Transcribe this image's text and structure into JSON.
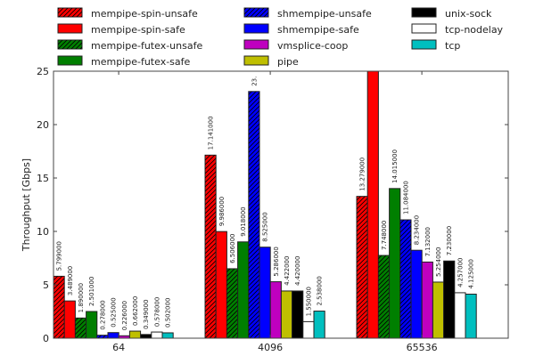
{
  "chart_data": {
    "type": "bar",
    "title": "",
    "xlabel": "",
    "ylabel": "Throughput [Gbps]",
    "ylim": [
      0,
      25
    ],
    "yticks": [
      0,
      5,
      10,
      15,
      20,
      25
    ],
    "grid": false,
    "legend_position": "top",
    "categories": [
      "64",
      "4096",
      "65536"
    ],
    "series": [
      {
        "name": "mempipe-spin-unsafe",
        "color": "#ff0000",
        "hatch": true,
        "values": [
          5.799,
          17.141,
          13.279
        ],
        "labels": [
          "5.799000",
          "17.141000",
          "13.279000"
        ]
      },
      {
        "name": "mempipe-spin-safe",
        "color": "#ff0000",
        "hatch": false,
        "values": [
          3.489,
          9.986,
          25.0
        ],
        "labels": [
          "3.489000",
          "9.986000",
          ""
        ]
      },
      {
        "name": "mempipe-futex-unsafe",
        "color": "#007f00",
        "hatch": true,
        "values": [
          1.89,
          6.506,
          7.748
        ],
        "labels": [
          "1.890000",
          "6.506000",
          "7.748000"
        ]
      },
      {
        "name": "mempipe-futex-safe",
        "color": "#007f00",
        "hatch": false,
        "values": [
          2.501,
          9.018,
          14.015
        ],
        "labels": [
          "2.501000",
          "9.018000",
          "14.015000"
        ]
      },
      {
        "name": "shmempipe-unsafe",
        "color": "#0000ff",
        "hatch": true,
        "values": [
          0.278,
          23.1,
          11.084
        ],
        "labels": [
          "0.278000",
          "23.",
          "11.084000"
        ]
      },
      {
        "name": "shmempipe-safe",
        "color": "#0000ff",
        "hatch": false,
        "values": [
          0.525,
          8.525,
          8.234
        ],
        "labels": [
          "0.525000",
          "8.525000",
          "8.234000"
        ]
      },
      {
        "name": "vmsplice-coop",
        "color": "#bf00bf",
        "hatch": false,
        "values": [
          0.226,
          5.286,
          7.132
        ],
        "labels": [
          "0.226000",
          "5.286000",
          "7.132000"
        ]
      },
      {
        "name": "pipe",
        "color": "#bfbf00",
        "hatch": false,
        "values": [
          0.662,
          4.422,
          5.254
        ],
        "labels": [
          "0.662000",
          "4.422000",
          "5.254000"
        ]
      },
      {
        "name": "unix-sock",
        "color": "#000000",
        "hatch": false,
        "values": [
          0.349,
          4.42,
          7.23
        ],
        "labels": [
          "0.349000",
          "4.420000",
          "7.230000"
        ]
      },
      {
        "name": "tcp-nodelay",
        "color": "#ffffff",
        "hatch": false,
        "values": [
          0.578,
          1.55,
          4.257
        ],
        "labels": [
          "0.578000",
          "1.550000",
          "4.257000"
        ]
      },
      {
        "name": "tcp",
        "color": "#00bfbf",
        "hatch": false,
        "values": [
          0.502,
          2.538,
          4.125
        ],
        "labels": [
          "0.502000",
          "2.538000",
          "4.125000"
        ]
      }
    ]
  }
}
